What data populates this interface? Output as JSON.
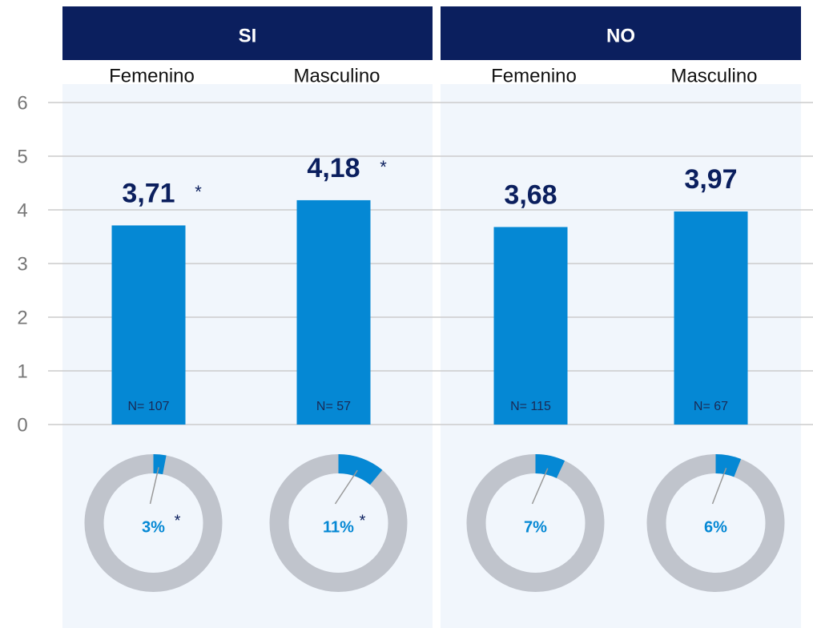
{
  "chart_data": {
    "type": "bar",
    "groups": [
      {
        "name": "SI",
        "categories": [
          "Femenino",
          "Masculino"
        ],
        "values": [
          3.71,
          4.18
        ],
        "value_labels": [
          "3,71",
          "4,18"
        ],
        "markers": [
          "*",
          "*"
        ],
        "n_labels": [
          "N= 107",
          "N= 57"
        ],
        "share": [
          3,
          11
        ],
        "share_labels": [
          "3%",
          "11%"
        ],
        "share_markers": [
          "*",
          "*"
        ]
      },
      {
        "name": "NO",
        "categories": [
          "Femenino",
          "Masculino"
        ],
        "values": [
          3.68,
          3.97
        ],
        "value_labels": [
          "3,68",
          "3,97"
        ],
        "n_labels": [
          "N= 115",
          "N= 67"
        ],
        "share": [
          7,
          6
        ],
        "share_labels": [
          "7%",
          "6%"
        ]
      }
    ],
    "ylim": [
      0,
      6
    ],
    "yticks": [
      0,
      1,
      2,
      3,
      4,
      5,
      6
    ],
    "grid": true,
    "color": "#0588d4",
    "header_color": "#0b1f5e",
    "ring_color": "#c0c4cc",
    "panel_color": "#f1f6fc",
    "label_color": "#0b1f5e"
  }
}
